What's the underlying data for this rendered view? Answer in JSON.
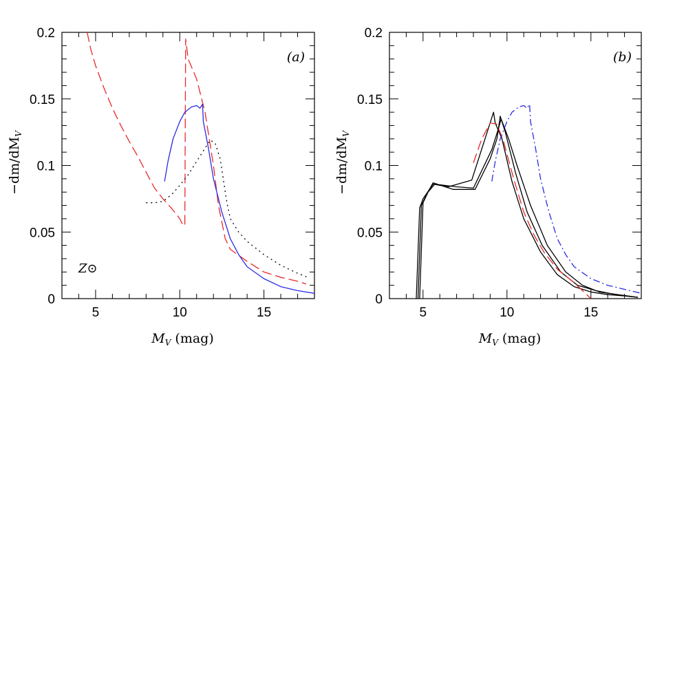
{
  "chart_data": [
    {
      "type": "line",
      "panel_label": "(a)",
      "annotation": "Z⊙",
      "xlabel_main": "M",
      "xlabel_sub": "V",
      "xlabel_unit": " (mag)",
      "ylabel_parts": [
        "−dm/dM",
        "V"
      ],
      "xlim": [
        3,
        18
      ],
      "ylim": [
        0,
        0.2
      ],
      "x_ticks": [
        5,
        10,
        15
      ],
      "y_ticks": [
        0,
        0.05,
        0.1,
        0.15,
        0.2
      ],
      "x_tick_labels": [
        "5",
        "10",
        "15"
      ],
      "y_tick_labels": [
        "0",
        "0.05",
        "0.1",
        "0.15",
        "0.2"
      ],
      "series": [
        {
          "color": "#e8262a",
          "style": "dashed",
          "points": [
            [
              4.5,
              0.2
            ],
            [
              4.7,
              0.188
            ],
            [
              5.0,
              0.175
            ],
            [
              5.5,
              0.158
            ],
            [
              6.0,
              0.143
            ],
            [
              6.5,
              0.13
            ],
            [
              7.0,
              0.118
            ],
            [
              7.5,
              0.107
            ],
            [
              8.0,
              0.095
            ],
            [
              8.5,
              0.083
            ],
            [
              9.0,
              0.075
            ],
            [
              9.5,
              0.068
            ],
            [
              10.0,
              0.06
            ],
            [
              10.2,
              0.055
            ],
            [
              10.3,
              0.055
            ],
            [
              10.35,
              0.195
            ],
            [
              10.5,
              0.18
            ],
            [
              11.0,
              0.165
            ],
            [
              11.5,
              0.14
            ],
            [
              12.0,
              0.1
            ],
            [
              12.3,
              0.07
            ],
            [
              12.7,
              0.045
            ],
            [
              13.0,
              0.037
            ],
            [
              14.0,
              0.028
            ],
            [
              15.0,
              0.02
            ],
            [
              16.0,
              0.016
            ],
            [
              17.0,
              0.013
            ],
            [
              17.5,
              0.011
            ]
          ]
        },
        {
          "color": "#2a2ae0",
          "style": "solid",
          "points": [
            [
              9.1,
              0.088
            ],
            [
              9.3,
              0.103
            ],
            [
              9.6,
              0.12
            ],
            [
              10.0,
              0.133
            ],
            [
              10.3,
              0.14
            ],
            [
              10.7,
              0.144
            ],
            [
              11.0,
              0.145
            ],
            [
              11.2,
              0.143
            ],
            [
              11.35,
              0.146
            ],
            [
              11.4,
              0.133
            ],
            [
              11.7,
              0.113
            ],
            [
              12.0,
              0.09
            ],
            [
              12.5,
              0.065
            ],
            [
              13.0,
              0.045
            ],
            [
              13.5,
              0.033
            ],
            [
              14.0,
              0.024
            ],
            [
              15.0,
              0.015
            ],
            [
              16.0,
              0.009
            ],
            [
              17.0,
              0.006
            ],
            [
              18.0,
              0.004
            ]
          ]
        },
        {
          "color": "#000000",
          "style": "dotted",
          "points": [
            [
              8.0,
              0.072
            ],
            [
              8.5,
              0.072
            ],
            [
              9.0,
              0.073
            ],
            [
              9.5,
              0.078
            ],
            [
              10.0,
              0.085
            ],
            [
              10.5,
              0.093
            ],
            [
              11.0,
              0.103
            ],
            [
              11.5,
              0.113
            ],
            [
              11.8,
              0.119
            ],
            [
              12.1,
              0.117
            ],
            [
              12.4,
              0.105
            ],
            [
              12.8,
              0.072
            ],
            [
              13.0,
              0.06
            ],
            [
              13.5,
              0.05
            ],
            [
              14.0,
              0.043
            ],
            [
              15.0,
              0.033
            ],
            [
              16.0,
              0.025
            ],
            [
              17.0,
              0.019
            ],
            [
              17.6,
              0.016
            ]
          ]
        }
      ]
    },
    {
      "type": "line",
      "panel_label": "(b)",
      "xlabel_main": "M",
      "xlabel_sub": "V",
      "xlabel_unit": " (mag)",
      "ylabel_parts": [
        "−dm/dM",
        "V"
      ],
      "xlim": [
        3,
        18
      ],
      "ylim": [
        0,
        0.2
      ],
      "x_ticks": [
        5,
        10,
        15
      ],
      "y_ticks": [
        0,
        0.05,
        0.1,
        0.15,
        0.2
      ],
      "x_tick_labels": [
        "5",
        "10",
        "15"
      ],
      "y_tick_labels": [
        "0",
        "0.05",
        "0.1",
        "0.15",
        "0.2"
      ],
      "series": [
        {
          "color": "#000000",
          "style": "solid",
          "points": [
            [
              4.6,
              0.0
            ],
            [
              4.8,
              0.068
            ],
            [
              5.0,
              0.075
            ],
            [
              5.6,
              0.086
            ],
            [
              6.5,
              0.084
            ],
            [
              7.9,
              0.089
            ],
            [
              9.2,
              0.14
            ],
            [
              9.3,
              0.132
            ],
            [
              9.7,
              0.12
            ],
            [
              10.3,
              0.088
            ],
            [
              11.0,
              0.06
            ],
            [
              12.0,
              0.035
            ],
            [
              13.0,
              0.018
            ],
            [
              14.0,
              0.009
            ],
            [
              15.0,
              0.005
            ],
            [
              16.0,
              0.003
            ],
            [
              17.0,
              0.002
            ],
            [
              17.8,
              0.001
            ]
          ]
        },
        {
          "color": "#000000",
          "style": "solid",
          "points": [
            [
              4.7,
              0.0
            ],
            [
              4.9,
              0.07
            ],
            [
              5.2,
              0.078
            ],
            [
              5.6,
              0.087
            ],
            [
              6.8,
              0.082
            ],
            [
              8.1,
              0.082
            ],
            [
              9.0,
              0.105
            ],
            [
              9.4,
              0.12
            ],
            [
              9.6,
              0.137
            ],
            [
              9.9,
              0.125
            ],
            [
              10.5,
              0.095
            ],
            [
              11.2,
              0.065
            ],
            [
              12.1,
              0.04
            ],
            [
              13.2,
              0.02
            ],
            [
              14.2,
              0.01
            ],
            [
              15.3,
              0.006
            ],
            [
              16.5,
              0.003
            ],
            [
              17.8,
              0.001
            ]
          ]
        },
        {
          "color": "#000000",
          "style": "solid",
          "points": [
            [
              4.8,
              0.0
            ],
            [
              5.0,
              0.072
            ],
            [
              5.3,
              0.08
            ],
            [
              5.7,
              0.086
            ],
            [
              7.0,
              0.084
            ],
            [
              8.0,
              0.083
            ],
            [
              9.1,
              0.112
            ],
            [
              9.5,
              0.128
            ],
            [
              9.65,
              0.135
            ],
            [
              10.1,
              0.12
            ],
            [
              10.6,
              0.1
            ],
            [
              11.4,
              0.07
            ],
            [
              12.4,
              0.04
            ],
            [
              13.5,
              0.02
            ],
            [
              14.5,
              0.01
            ],
            [
              15.5,
              0.005
            ],
            [
              16.6,
              0.003
            ],
            [
              17.8,
              0.001
            ]
          ]
        },
        {
          "color": "#e8262a",
          "style": "dashed",
          "points": [
            [
              8.0,
              0.102
            ],
            [
              8.5,
              0.12
            ],
            [
              9.0,
              0.132
            ],
            [
              9.4,
              0.131
            ],
            [
              9.8,
              0.118
            ],
            [
              10.4,
              0.09
            ],
            [
              11.0,
              0.065
            ],
            [
              11.6,
              0.048
            ],
            [
              12.2,
              0.035
            ],
            [
              13.0,
              0.022
            ],
            [
              14.0,
              0.012
            ],
            [
              15.0,
              0.0
            ]
          ]
        },
        {
          "color": "#2a2ae0",
          "style": "dashdot",
          "points": [
            [
              9.1,
              0.088
            ],
            [
              9.3,
              0.103
            ],
            [
              9.6,
              0.12
            ],
            [
              10.0,
              0.133
            ],
            [
              10.3,
              0.14
            ],
            [
              10.7,
              0.144
            ],
            [
              11.0,
              0.145
            ],
            [
              11.2,
              0.143
            ],
            [
              11.35,
              0.146
            ],
            [
              11.4,
              0.133
            ],
            [
              11.7,
              0.113
            ],
            [
              12.0,
              0.09
            ],
            [
              12.5,
              0.065
            ],
            [
              13.0,
              0.045
            ],
            [
              13.5,
              0.033
            ],
            [
              14.0,
              0.024
            ],
            [
              15.0,
              0.015
            ],
            [
              16.0,
              0.01
            ],
            [
              17.0,
              0.007
            ],
            [
              18.0,
              0.004
            ]
          ]
        }
      ]
    }
  ]
}
